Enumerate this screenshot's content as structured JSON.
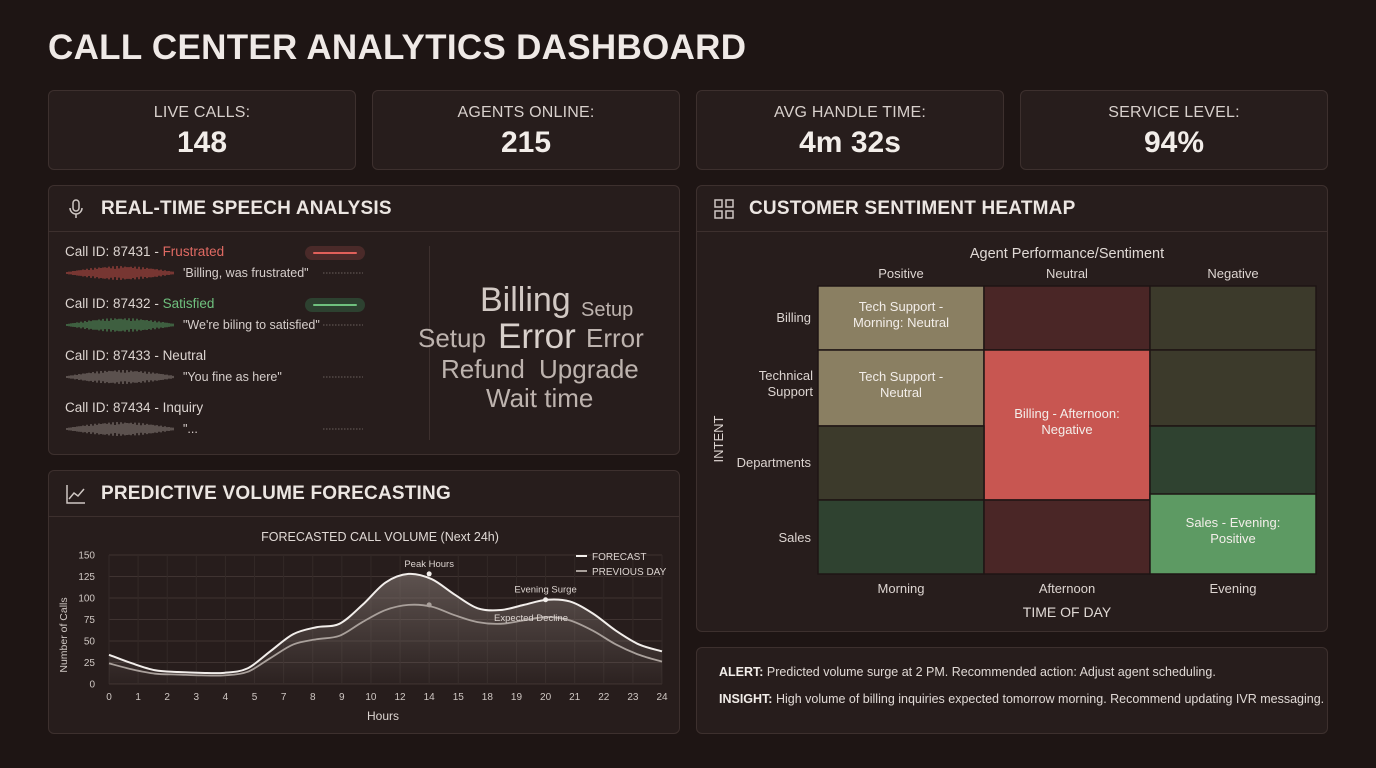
{
  "title": "CALL CENTER ANALYTICS DASHBOARD",
  "kpis": [
    {
      "label": "LIVE CALLS:",
      "value": "148"
    },
    {
      "label": "AGENTS ONLINE:",
      "value": "215"
    },
    {
      "label": "AVG HANDLE TIME:",
      "value": "4m 32s"
    },
    {
      "label": "SERVICE LEVEL:",
      "value": "94%"
    }
  ],
  "speech": {
    "title": "REAL-TIME SPEECH ANALYSIS",
    "calls": [
      {
        "id": "Call ID: 87431",
        "sep": " - ",
        "sentiment": "Frustrated",
        "quote": "'Billing, was frustrated\"",
        "color": "#d9544d"
      },
      {
        "id": "Call ID: 87432",
        "sep": " - ",
        "sentiment": "Satisfied",
        "quote": "\"We're biling to satisfied\"",
        "color": "#5cb06b"
      },
      {
        "id": "Call ID: 87433",
        "sep": " - ",
        "sentiment": "Neutral",
        "quote": "\"You fine as here\"",
        "color": "#9b918c"
      },
      {
        "id": "Call ID: 87434",
        "sep": " - ",
        "sentiment": "Inquiry",
        "quote": "\"...",
        "color": "#9b918c"
      }
    ],
    "keywords": [
      "Billing",
      "Setup",
      "Setup",
      "Error",
      "Error",
      "Refund",
      "Upgrade",
      "Wait time"
    ]
  },
  "forecast": {
    "title": "PREDICTIVE VOLUME FORECASTING"
  },
  "heatmap": {
    "title": "CUSTOMER SENTIMENT HEATMAP",
    "subtitle": "Agent Performance/Sentiment",
    "top_labels": [
      "Positive",
      "Neutral",
      "Negative"
    ],
    "row_labels": [
      "Billing",
      "Technical Support",
      "Departments",
      "Sales"
    ],
    "y_title": "INTENT",
    "bottom_labels": [
      "Morning",
      "Afternoon",
      "Evening"
    ],
    "x_title": "TIME OF DAY",
    "cell_labels": {
      "a": [
        "Tech Support -",
        "Morning: Neutral"
      ],
      "b": [
        "Tech Support -",
        "Neutral"
      ],
      "c": [
        "Billing - Afternoon:",
        "Negative"
      ],
      "d": [
        "Sales - Evening:",
        "Positive"
      ]
    },
    "colors": {
      "tan": "#8a7f62",
      "maroon": "#4a2626",
      "olive": "#3c3a2b",
      "red": "#c85651",
      "green_dark": "#2f4230",
      "green_mid": "#3b5a3f",
      "green_bright": "#5d9a63"
    }
  },
  "alerts": [
    {
      "label": "ALERT:",
      "text": " Predicted volume surge at 2 PM. Recommended action: Adjust agent scheduling."
    },
    {
      "label": "INSIGHT:",
      "text": " High volume of billing inquiries expected tomorrow morning. Recommend updating IVR messaging."
    }
  ],
  "chart_data": {
    "type": "line",
    "title": "FORECASTED CALL VOLUME (Next 24h)",
    "xlabel": "Hours",
    "ylabel": "Number of Calls",
    "x_ticks": [
      "0",
      "1",
      "2",
      "3",
      "4",
      "5",
      "7",
      "8",
      "9",
      "10",
      "12",
      "14",
      "15",
      "18",
      "19",
      "20",
      "21",
      "22",
      "23",
      "24"
    ],
    "y_ticks": [
      0,
      25,
      50,
      75,
      100,
      125,
      150
    ],
    "ylim": [
      0,
      150
    ],
    "legend_position": "top-right",
    "grid": true,
    "series": [
      {
        "name": "FORECAST",
        "color": "#f2eeeb",
        "values": [
          34,
          24,
          16,
          14,
          13,
          13,
          18,
          38,
          58,
          66,
          70,
          92,
          118,
          128,
          122,
          104,
          88,
          86,
          92,
          98,
          96,
          82,
          62,
          46,
          38
        ]
      },
      {
        "name": "PREVIOUS DAY",
        "color": "#a9a09b",
        "values": [
          24,
          17,
          12,
          11,
          10,
          10,
          14,
          30,
          46,
          52,
          56,
          72,
          86,
          92,
          90,
          80,
          72,
          70,
          74,
          78,
          74,
          62,
          46,
          34,
          26
        ]
      }
    ],
    "annotations": [
      {
        "text": "Peak Hours",
        "tick": 11,
        "y": 128
      },
      {
        "text": "Evening Surge",
        "tick": 15,
        "y": 98
      },
      {
        "text": "Expected Decline",
        "tick": 14.5,
        "y": 78
      }
    ]
  }
}
